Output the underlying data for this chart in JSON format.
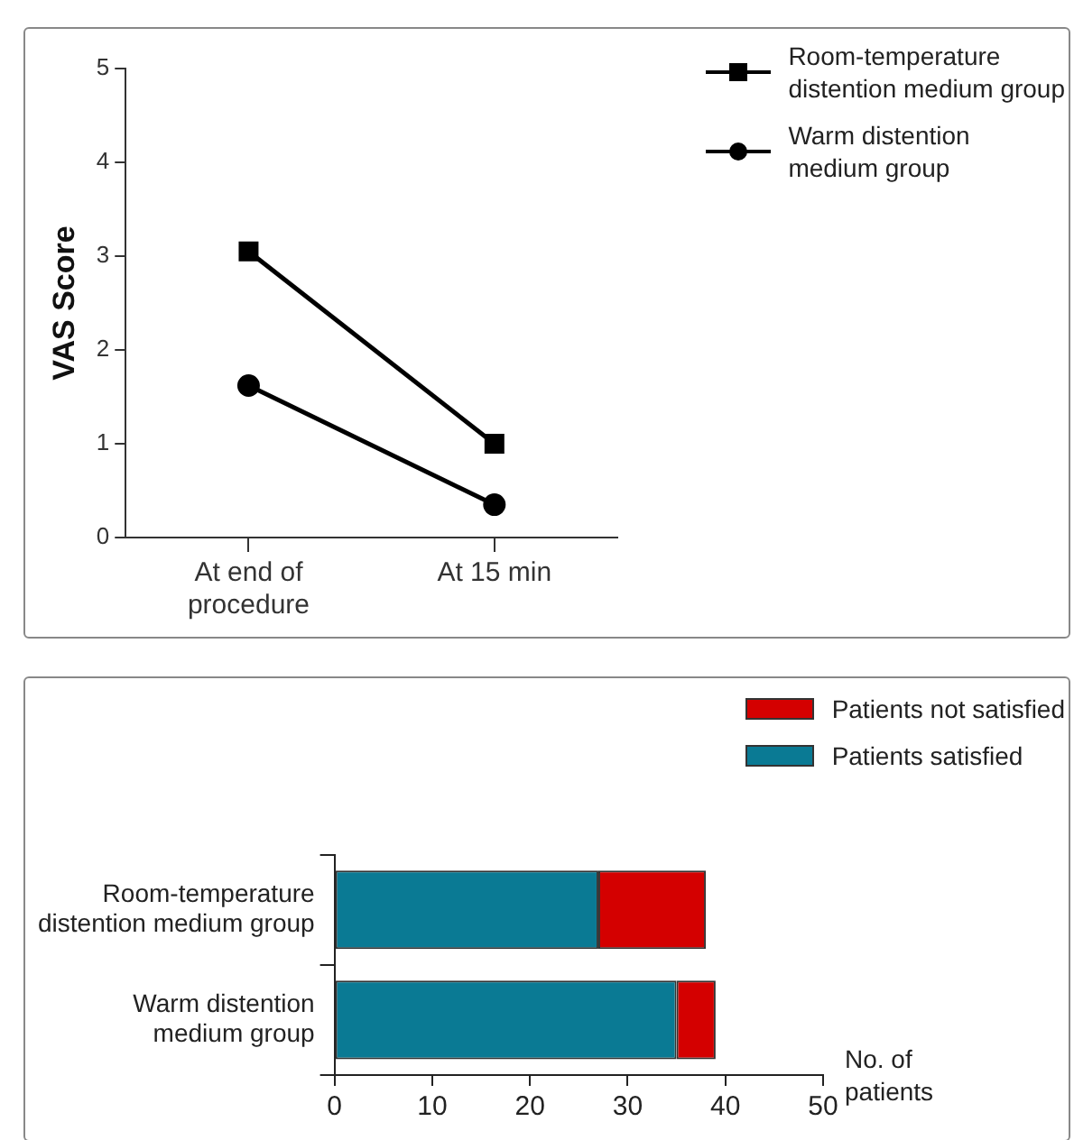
{
  "chart_data": [
    {
      "type": "line",
      "ylabel": "VAS Score",
      "categories": [
        "At end of procedure",
        "At 15 min"
      ],
      "ylim": [
        0,
        5
      ],
      "yticks": [
        0,
        1,
        2,
        3,
        4,
        5
      ],
      "grid": false,
      "legend": "top right",
      "line_style": "solid",
      "series": [
        {
          "name": "Room-temperature distention medium group",
          "color": "#000000",
          "marker": "square",
          "values": [
            3.05,
            1.0
          ]
        },
        {
          "name": "Warm distention medium group",
          "color": "#000000",
          "marker": "circle",
          "values": [
            1.62,
            0.35
          ]
        }
      ]
    },
    {
      "type": "bar",
      "orientation": "horizontal",
      "stacked": true,
      "xlabel": "No. of patients",
      "categories": [
        "Room-temperature distention medium group",
        "Warm distention medium group"
      ],
      "xlim": [
        0,
        50
      ],
      "xticks": [
        0,
        10,
        20,
        30,
        40,
        50
      ],
      "grid": false,
      "legend": "top right",
      "series": [
        {
          "name": "Patients satisfied",
          "color": "#0a7a94",
          "values": [
            27,
            35
          ]
        },
        {
          "name": "Patients not satisfied",
          "color": "#d40000",
          "values": [
            11,
            4
          ]
        }
      ]
    }
  ]
}
